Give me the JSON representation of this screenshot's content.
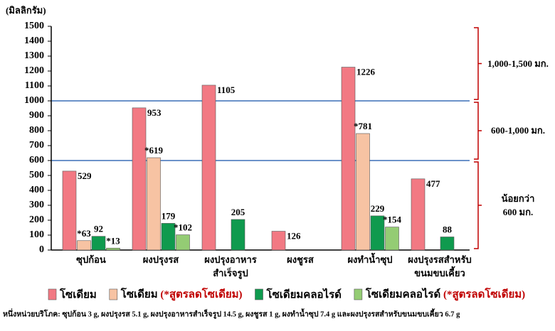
{
  "chart_data": {
    "type": "bar",
    "y_label": "(มิลลิกรัม)",
    "categories": [
      "ซุปก้อน",
      "ผงปรุงรส",
      "ผงปรุงอาหาร\nสำเร็จรูป",
      "ผงชูรส",
      "ผงทำน้ำซุป",
      "ผงปรุงรสสำหรับ\nขนมขบเคี้ยว"
    ],
    "series": [
      {
        "name": "โซเดียม",
        "color": "#f27983",
        "values": [
          529,
          953,
          1105,
          126,
          1226,
          477
        ]
      },
      {
        "name": "โซเดียม (*สูตรลดโซเดียม)",
        "color": "#f7c3a3",
        "values": [
          63,
          619,
          null,
          null,
          781,
          null
        ],
        "value_labels": [
          "*63",
          "*619",
          null,
          null,
          "*781",
          null
        ]
      },
      {
        "name": "โซเดียมคลอไรด์",
        "color": "#0f9a4e",
        "values": [
          92,
          179,
          205,
          null,
          229,
          88
        ]
      },
      {
        "name": "โซเดียมคลอไรด์ (*สูตรลดโซเดียม)",
        "color": "#94cc74",
        "values": [
          13,
          102,
          null,
          null,
          154,
          null
        ],
        "value_labels": [
          "*13",
          "*102",
          null,
          null,
          "*154",
          null
        ]
      }
    ],
    "ylim": [
      0,
      1500
    ],
    "yticks": [
      0,
      100,
      200,
      300,
      400,
      500,
      600,
      700,
      800,
      900,
      1000,
      1100,
      1200,
      1300,
      1400,
      1500
    ],
    "reference_lines": [
      600,
      1000
    ],
    "reference_color": "#3a6fb7",
    "ranges": [
      {
        "from": 1000,
        "to": 1500,
        "label": "1,000-1,500 มก."
      },
      {
        "from": 600,
        "to": 1000,
        "label": "600-1,000 มก."
      },
      {
        "from": 0,
        "to": 600,
        "label": "น้อยกว่า\n600 มก."
      }
    ],
    "range_color": "#c00000",
    "note_color": "#c00000",
    "footnote": "หนึ่งหน่วยบริโภค: ซุปก้อน 3 g, ผงปรุงรส 5.1 g, ผงปรุงอาหารสำเร็จรูป 14.5 g, ผงชูรส 1 g, ผงทำน้ำซุป 7.4 g และผงปรุงรสสำหรับขนมขบเคี้ยว 6.7 g"
  }
}
